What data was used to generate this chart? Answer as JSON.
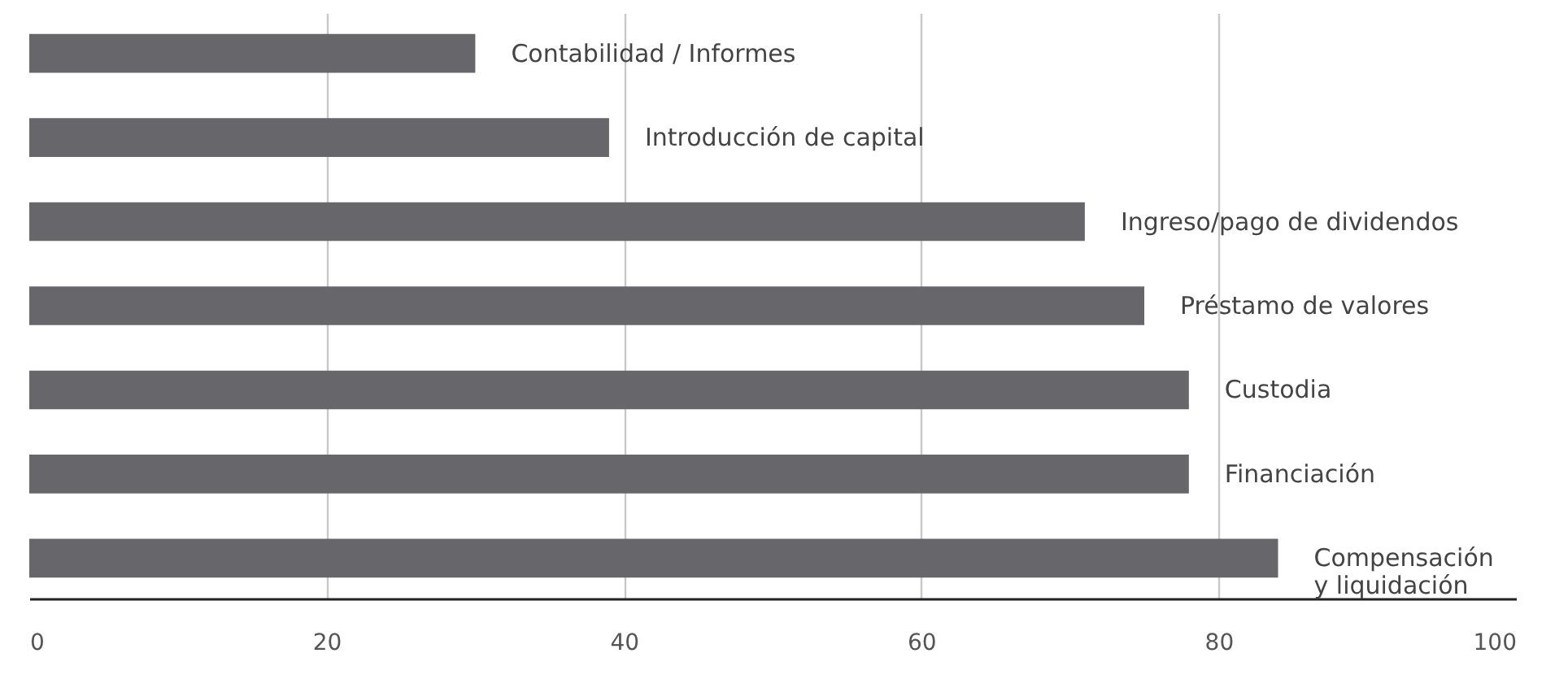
{
  "chart_data": {
    "type": "bar",
    "orientation": "horizontal",
    "categories": [
      "Contabilidad / Informes",
      "Introducción de capital",
      "Ingreso/pago de dividendos",
      "Préstamo de valores",
      "Custodia",
      "Financiación",
      "Compensación\ny liquidación"
    ],
    "values": [
      30,
      39,
      71,
      75,
      78,
      78,
      84
    ],
    "color": "#67666b",
    "xlim": [
      0,
      100
    ],
    "xticks": [
      0,
      20,
      40,
      60,
      80,
      100
    ],
    "grid": "x"
  }
}
